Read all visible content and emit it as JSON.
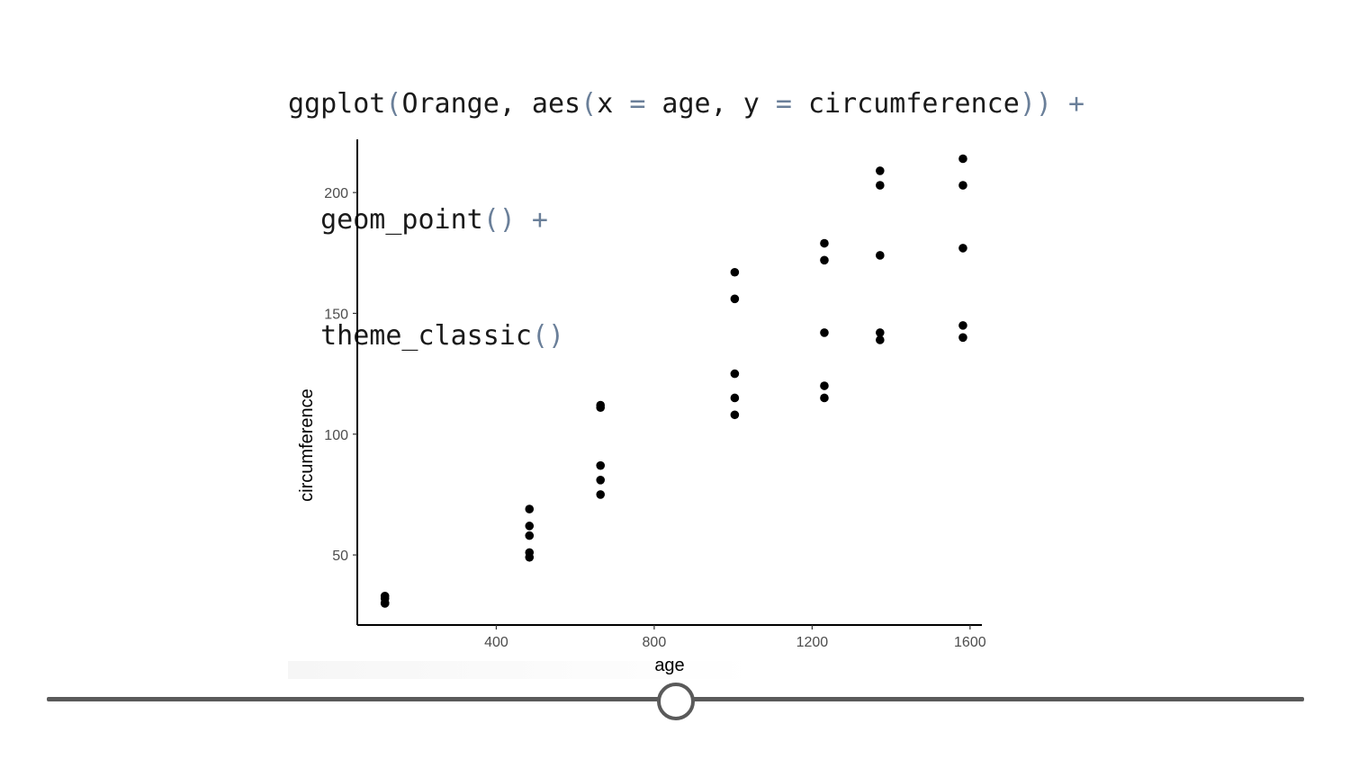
{
  "code": {
    "line1": [
      "ggplot",
      "(",
      "Orange, aes",
      "(",
      "x ",
      "=",
      " age, y ",
      "=",
      " circumference",
      "))",
      " +"
    ],
    "line2": [
      "geom_point",
      "()",
      " +"
    ],
    "line3": [
      "theme_classic",
      "()"
    ]
  },
  "chart_data": {
    "type": "scatter",
    "xlabel": "age",
    "ylabel": "circumference",
    "xlim": [
      48,
      1630
    ],
    "ylim": [
      21,
      222
    ],
    "xticks": [
      400,
      800,
      1200,
      1600
    ],
    "yticks": [
      50,
      100,
      150,
      200
    ],
    "grid": false,
    "theme": "classic",
    "point_color": "#000000",
    "points": [
      [
        118,
        30
      ],
      [
        118,
        33
      ],
      [
        118,
        30
      ],
      [
        118,
        32
      ],
      [
        118,
        30
      ],
      [
        484,
        58
      ],
      [
        484,
        69
      ],
      [
        484,
        51
      ],
      [
        484,
        62
      ],
      [
        484,
        49
      ],
      [
        664,
        87
      ],
      [
        664,
        111
      ],
      [
        664,
        75
      ],
      [
        664,
        112
      ],
      [
        664,
        81
      ],
      [
        1004,
        115
      ],
      [
        1004,
        156
      ],
      [
        1004,
        108
      ],
      [
        1004,
        167
      ],
      [
        1004,
        125
      ],
      [
        1231,
        120
      ],
      [
        1231,
        172
      ],
      [
        1231,
        115
      ],
      [
        1231,
        179
      ],
      [
        1231,
        142
      ],
      [
        1372,
        142
      ],
      [
        1372,
        203
      ],
      [
        1372,
        139
      ],
      [
        1372,
        209
      ],
      [
        1372,
        174
      ],
      [
        1582,
        145
      ],
      [
        1582,
        203
      ],
      [
        1582,
        140
      ],
      [
        1582,
        214
      ],
      [
        1582,
        177
      ]
    ]
  },
  "slider": {
    "position": 0.5
  }
}
